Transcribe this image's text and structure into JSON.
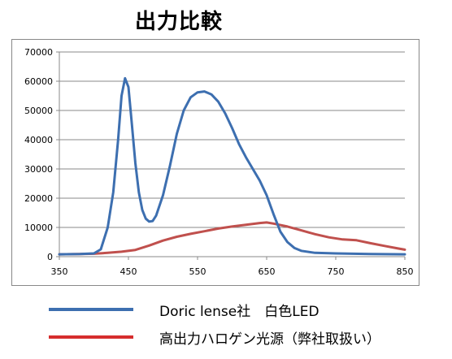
{
  "chart_data": {
    "type": "line",
    "title": "出力比較",
    "xlabel": "",
    "ylabel": "",
    "xlim": [
      350,
      850
    ],
    "ylim": [
      0,
      70000
    ],
    "x_ticks": [
      350,
      450,
      550,
      650,
      750,
      850
    ],
    "y_ticks": [
      0,
      10000,
      20000,
      30000,
      40000,
      50000,
      60000,
      70000
    ],
    "grid": "horizontal",
    "legend_position": "bottom",
    "series": [
      {
        "name": "Doric lense社　白色LED",
        "color": "#3d6fb0",
        "points": [
          [
            350,
            800
          ],
          [
            380,
            900
          ],
          [
            400,
            1100
          ],
          [
            410,
            2500
          ],
          [
            420,
            10000
          ],
          [
            428,
            22000
          ],
          [
            435,
            40000
          ],
          [
            440,
            55000
          ],
          [
            445,
            61000
          ],
          [
            450,
            58000
          ],
          [
            455,
            45000
          ],
          [
            460,
            32000
          ],
          [
            465,
            22000
          ],
          [
            470,
            16000
          ],
          [
            475,
            13000
          ],
          [
            480,
            12000
          ],
          [
            485,
            12200
          ],
          [
            490,
            14000
          ],
          [
            500,
            21000
          ],
          [
            510,
            31000
          ],
          [
            520,
            42000
          ],
          [
            530,
            50000
          ],
          [
            540,
            54500
          ],
          [
            550,
            56200
          ],
          [
            560,
            56500
          ],
          [
            570,
            55500
          ],
          [
            580,
            53000
          ],
          [
            590,
            49000
          ],
          [
            600,
            44000
          ],
          [
            610,
            38500
          ],
          [
            620,
            34000
          ],
          [
            630,
            30000
          ],
          [
            640,
            26000
          ],
          [
            650,
            21000
          ],
          [
            660,
            14500
          ],
          [
            670,
            8500
          ],
          [
            680,
            5000
          ],
          [
            690,
            3000
          ],
          [
            700,
            2000
          ],
          [
            720,
            1300
          ],
          [
            750,
            1100
          ],
          [
            800,
            900
          ],
          [
            850,
            800
          ]
        ]
      },
      {
        "name": "高出力ハロゲン光源（弊社取扱い）",
        "color": "#c0504d",
        "points": [
          [
            350,
            800
          ],
          [
            380,
            900
          ],
          [
            400,
            1000
          ],
          [
            420,
            1300
          ],
          [
            440,
            1700
          ],
          [
            460,
            2300
          ],
          [
            480,
            3800
          ],
          [
            500,
            5500
          ],
          [
            520,
            6800
          ],
          [
            540,
            7800
          ],
          [
            560,
            8700
          ],
          [
            580,
            9600
          ],
          [
            600,
            10300
          ],
          [
            620,
            10900
          ],
          [
            640,
            11500
          ],
          [
            650,
            11700
          ],
          [
            660,
            11300
          ],
          [
            680,
            10300
          ],
          [
            700,
            9000
          ],
          [
            720,
            7700
          ],
          [
            740,
            6600
          ],
          [
            760,
            5900
          ],
          [
            780,
            5600
          ],
          [
            800,
            4600
          ],
          [
            820,
            3700
          ],
          [
            840,
            2800
          ],
          [
            850,
            2400
          ]
        ]
      }
    ]
  }
}
